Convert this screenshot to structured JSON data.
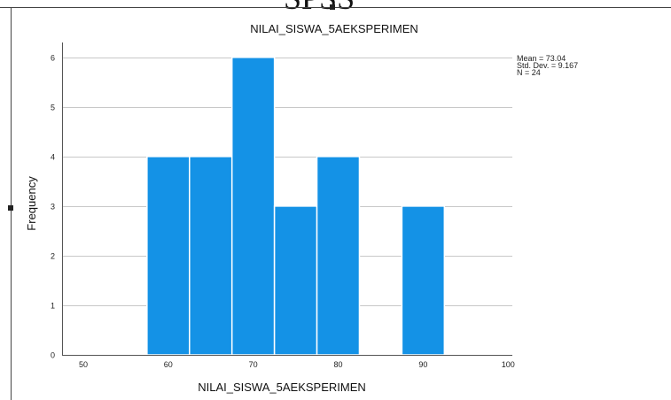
{
  "header_snippet": "SPSS",
  "chart_data": {
    "type": "bar",
    "title": "NILAI_SISWA_5AEKSPERIMEN",
    "xlabel": "NILAI_SISWA_5AEKSPERIMEN",
    "ylabel": "Frequency",
    "xlim": [
      47.5,
      100.5
    ],
    "ylim": [
      0,
      6.3
    ],
    "x_ticks": [
      50,
      60,
      70,
      80,
      90,
      100
    ],
    "y_ticks": [
      0,
      1,
      2,
      3,
      4,
      5,
      6
    ],
    "bins": [
      {
        "from": 57.5,
        "to": 62.5,
        "value": 4
      },
      {
        "from": 62.5,
        "to": 67.5,
        "value": 4
      },
      {
        "from": 67.5,
        "to": 72.5,
        "value": 6
      },
      {
        "from": 72.5,
        "to": 77.5,
        "value": 3
      },
      {
        "from": 77.5,
        "to": 82.5,
        "value": 4
      },
      {
        "from": 87.5,
        "to": 92.5,
        "value": 3
      }
    ],
    "stats": {
      "mean": "Mean = 73.04",
      "std_dev": "Std. Dev. = 9.167",
      "n": "N = 24"
    },
    "grid": true,
    "bar_color": "#1492e6"
  }
}
